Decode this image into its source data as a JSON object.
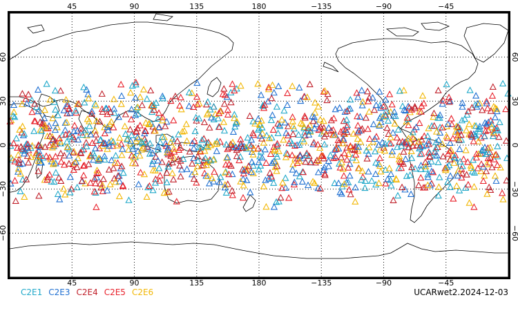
{
  "map": {
    "projection": "cylindrical equidistant",
    "lon_range": [
      0,
      360
    ],
    "lat_range": [
      -90,
      90
    ],
    "grid": "dotted every 45 deg lon, 30 deg lat",
    "x_ticks": [
      {
        "lon": 45,
        "label": "45"
      },
      {
        "lon": 90,
        "label": "90"
      },
      {
        "lon": 135,
        "label": "135"
      },
      {
        "lon": 180,
        "label": "180"
      },
      {
        "lon": 225,
        "label": "−135"
      },
      {
        "lon": 270,
        "label": "−90"
      },
      {
        "lon": 315,
        "label": "−45"
      }
    ],
    "y_ticks": [
      {
        "lat": 60,
        "label": "60"
      },
      {
        "lat": 30,
        "label": "30"
      },
      {
        "lat": 0,
        "label": "0"
      },
      {
        "lat": -30,
        "label": "−30"
      },
      {
        "lat": -60,
        "label": "−60"
      }
    ],
    "marker": "open-triangle",
    "observation_band_lat": [
      -45,
      47
    ]
  },
  "legend": {
    "items": [
      {
        "label": "C2E1",
        "color": "#1fa8c9"
      },
      {
        "label": "C2E3",
        "color": "#1f6fd1"
      },
      {
        "label": "C2E4",
        "color": "#c0202a"
      },
      {
        "label": "C2E5",
        "color": "#e8202a"
      },
      {
        "label": "C2E6",
        "color": "#f2b705"
      }
    ]
  },
  "caption": "UCARwet2.2024-12-03"
}
